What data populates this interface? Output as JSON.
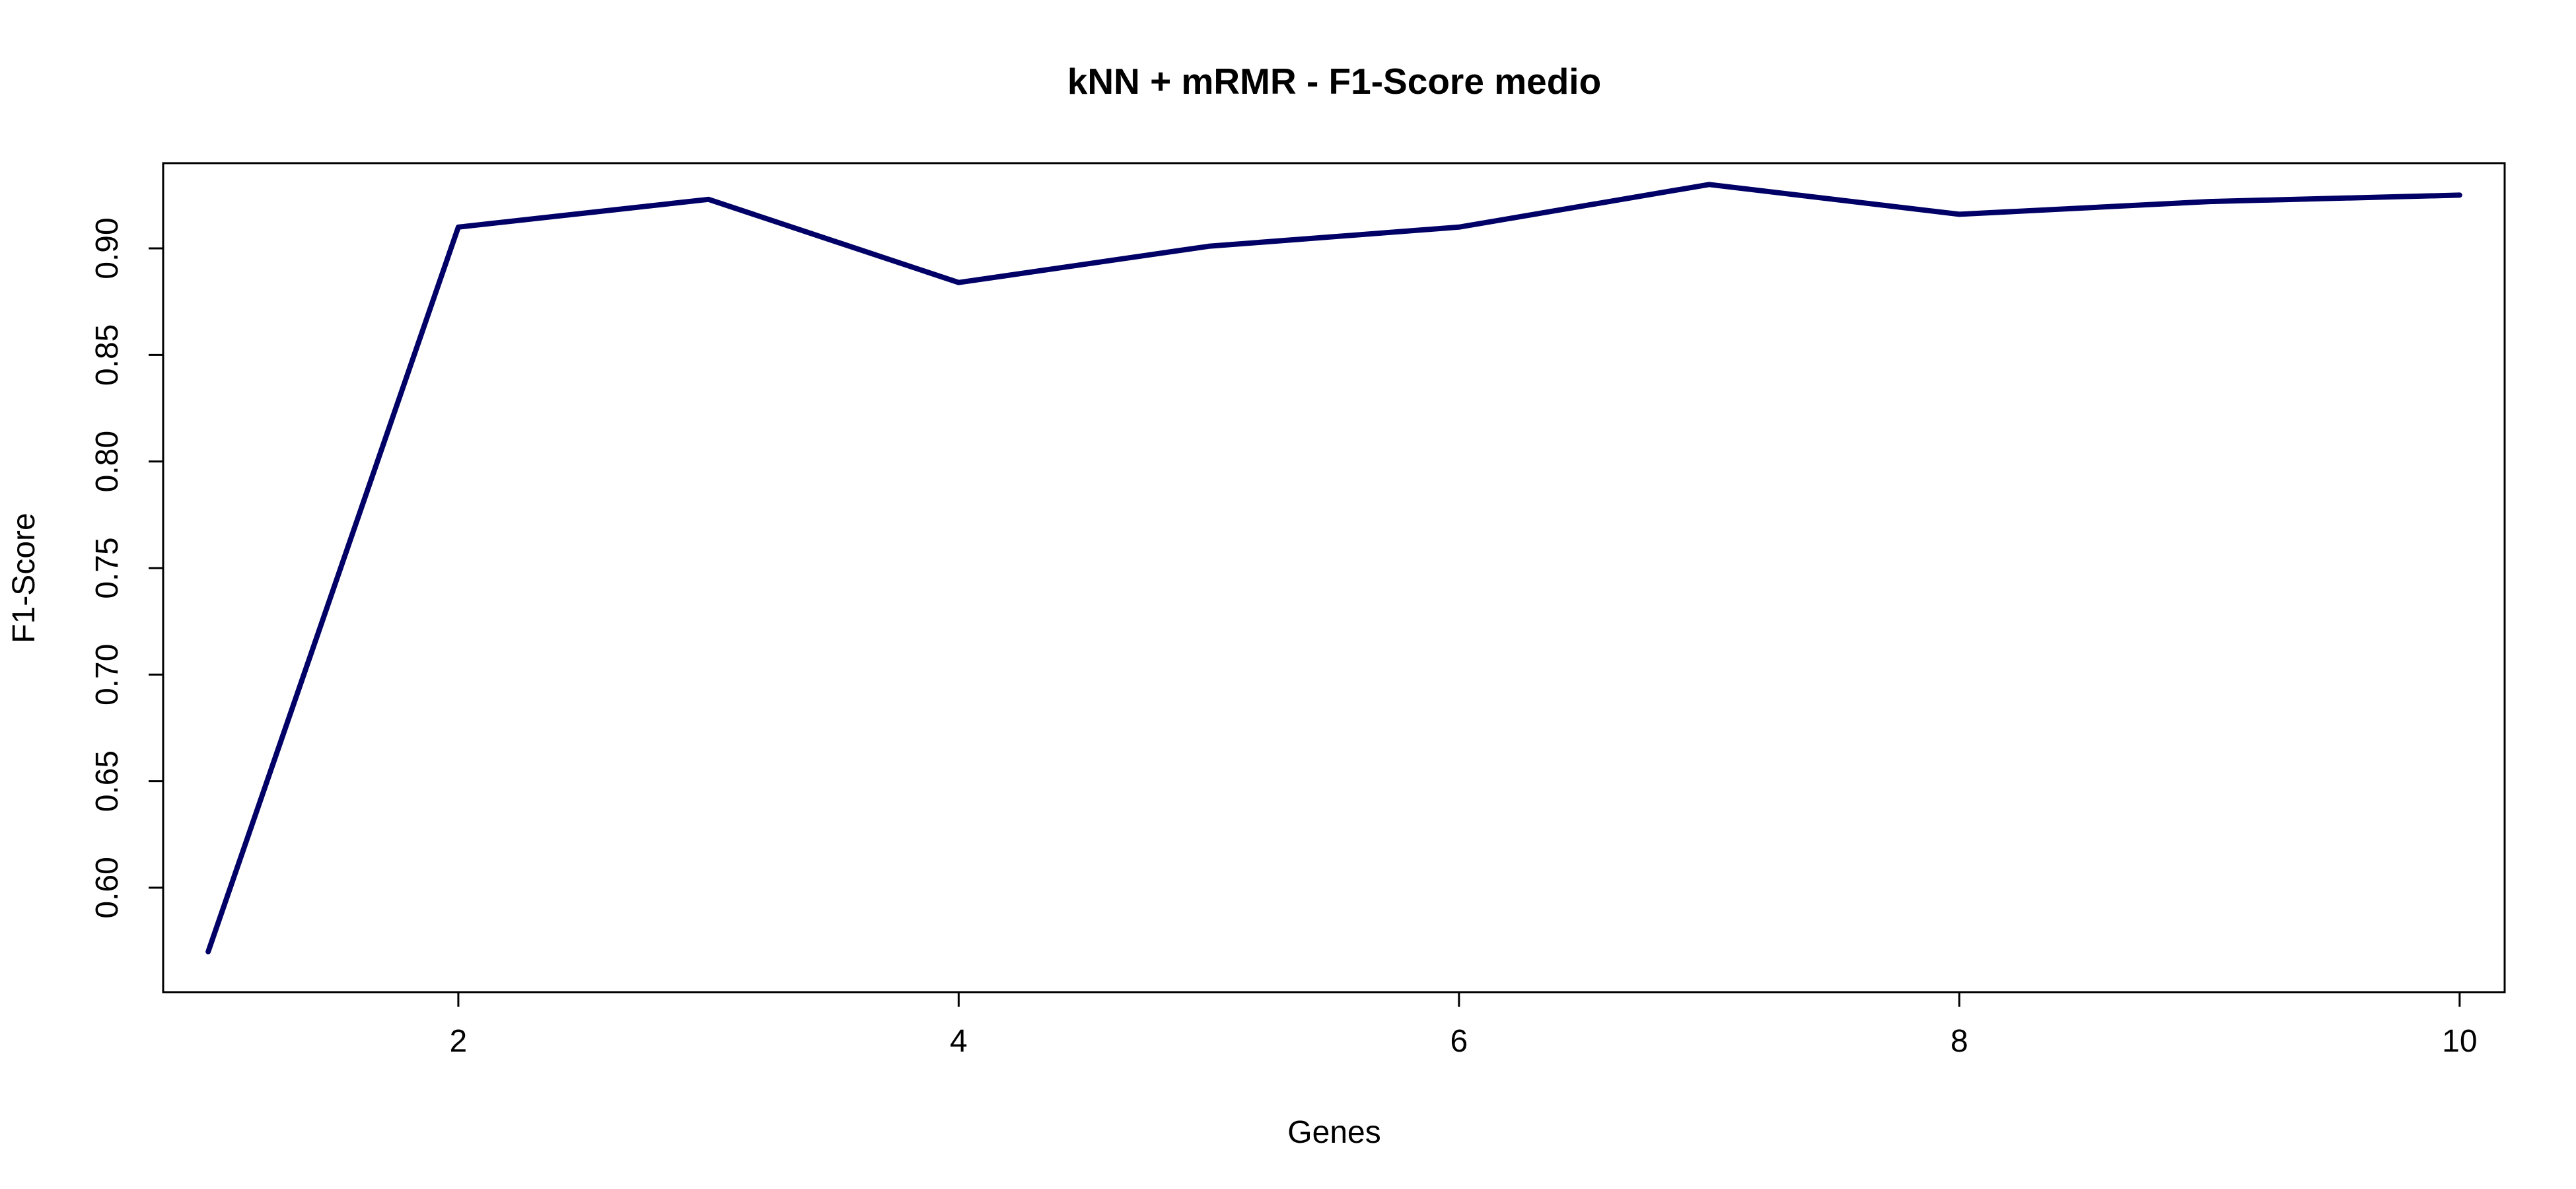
{
  "chart_data": {
    "type": "line",
    "title": "kNN + mRMR - F1-Score medio",
    "xlabel": "Genes",
    "ylabel": "F1-Score",
    "xlim": [
      0.82,
      10.18
    ],
    "ylim": [
      0.551,
      0.94
    ],
    "x_ticks": [
      2,
      4,
      6,
      8,
      10
    ],
    "y_ticks": [
      0.6,
      0.65,
      0.7,
      0.75,
      0.8,
      0.85,
      0.9
    ],
    "x_tick_labels": [
      "2",
      "4",
      "6",
      "8",
      "10"
    ],
    "y_tick_labels": [
      "0.60",
      "0.65",
      "0.70",
      "0.75",
      "0.80",
      "0.85",
      "0.90"
    ],
    "grid": false,
    "series": [
      {
        "color": "#000066",
        "x": [
          1,
          2,
          3,
          4,
          5,
          6,
          7,
          8,
          9,
          10
        ],
        "values": [
          0.57,
          0.91,
          0.923,
          0.884,
          0.901,
          0.91,
          0.93,
          0.916,
          0.922,
          0.925
        ]
      }
    ]
  }
}
